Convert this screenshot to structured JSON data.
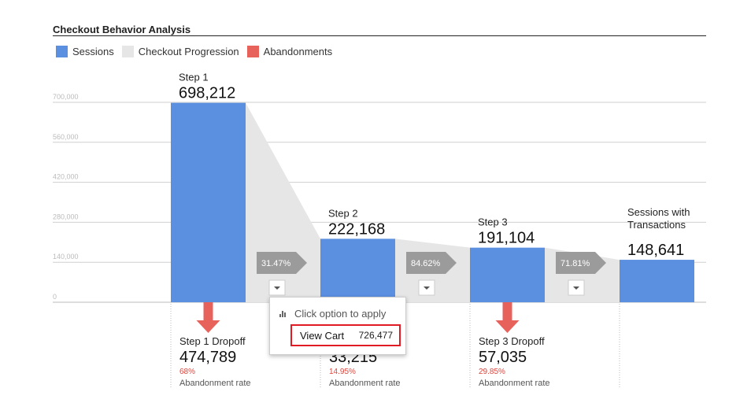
{
  "header": {
    "title": "Checkout Behavior Analysis"
  },
  "legend": [
    {
      "label": "Sessions",
      "color": "#5b8fe0"
    },
    {
      "label": "Checkout Progression",
      "color": "#e6e6e6"
    },
    {
      "label": "Abandonments",
      "color": "#e8625c"
    }
  ],
  "chart_data": {
    "type": "bar",
    "title": "Checkout Behavior Analysis",
    "ylim": [
      0,
      700000
    ],
    "y_ticks": [
      "0",
      "140,000",
      "280,000",
      "420,000",
      "560,000",
      "700,000"
    ],
    "y_tick_values": [
      0,
      140000,
      280000,
      420000,
      560000,
      700000
    ],
    "grid": true,
    "legend_position": "top-left",
    "steps": [
      {
        "label": "Step 1",
        "value": 698212,
        "value_text": "698,212"
      },
      {
        "label": "Step 2",
        "value": 222168,
        "value_text": "222,168"
      },
      {
        "label": "Step 3",
        "value": 191104,
        "value_text": "191,104"
      },
      {
        "label": "Sessions with Transactions",
        "label_lines": [
          "Sessions with",
          "Transactions"
        ],
        "value": 148641,
        "value_text": "148,641"
      }
    ],
    "conversions": [
      "31.47%",
      "84.62%",
      "71.81%"
    ],
    "dropoffs": [
      {
        "label": "Step 1 Dropoff",
        "value": 474789,
        "value_text": "474,789",
        "rate": "68%",
        "rate_label": "Abandonment rate"
      },
      {
        "label": "",
        "value": 33215,
        "value_text": "33,215",
        "rate": "14.95%",
        "rate_label": "Abandonment rate"
      },
      {
        "label": "Step 3 Dropoff",
        "value": 57035,
        "value_text": "57,035",
        "rate": "29.85%",
        "rate_label": "Abandonment rate"
      }
    ],
    "colors": {
      "sessions": "#5b8fe0",
      "progression": "#e6e6e6",
      "abandonments": "#e8625c",
      "conversion_arrow": "#9b9b9b"
    }
  },
  "popup": {
    "hint": "Click option to apply",
    "option_label": "View Cart",
    "option_value": "726,477"
  }
}
